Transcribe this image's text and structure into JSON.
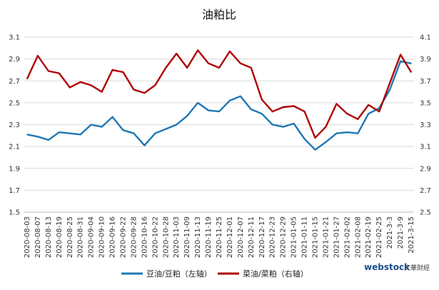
{
  "chart_data": {
    "type": "line",
    "title": "油粕比",
    "left_axis": {
      "ylim": [
        1.5,
        3.1
      ],
      "ticks": [
        "1.5",
        "1.7",
        "1.9",
        "2.1",
        "2.3",
        "2.5",
        "2.7",
        "2.9",
        "3.1"
      ]
    },
    "right_axis": {
      "ylim": [
        2.5,
        4.1
      ],
      "ticks": [
        "2.5",
        "2.7",
        "2.9",
        "3.1",
        "3.3",
        "3.5",
        "3.7",
        "3.9",
        "4.1"
      ]
    },
    "grid": true,
    "legend_position": "bottom",
    "categories": [
      "2020-08-03",
      "2020-08-07",
      "2020-08-13",
      "2020-08-19",
      "2020-08-25",
      "2020-08-31",
      "2020-09-04",
      "2020-09-10",
      "2020-09-16",
      "2020-09-22",
      "2020-09-28",
      "2020-10-16",
      "2020-10-22",
      "2020-10-28",
      "2020-11-03",
      "2020-11-09",
      "2020-11-13",
      "2020-11-19",
      "2020-11-25",
      "2020-12-01",
      "2020-12-07",
      "2020-12-11",
      "2020-12-17",
      "2020-12-23",
      "2020-12-29",
      "2021-01-05",
      "2021-01-11",
      "2021-01-15",
      "2021-01-21",
      "2021-01-27",
      "2021-02-02",
      "2021-02-08",
      "2021-02-19",
      "2021-02-25",
      "2021-3-3",
      "2021-3-9",
      "2021-3-15"
    ],
    "series": [
      {
        "name": "豆油/豆粕（左轴）",
        "axis": "left",
        "color": "#1f77b4",
        "values": [
          2.21,
          2.19,
          2.16,
          2.23,
          2.22,
          2.21,
          2.3,
          2.28,
          2.37,
          2.25,
          2.22,
          2.11,
          2.22,
          2.26,
          2.3,
          2.38,
          2.5,
          2.43,
          2.42,
          2.52,
          2.56,
          2.44,
          2.4,
          2.3,
          2.28,
          2.31,
          2.17,
          2.07,
          2.14,
          2.22,
          2.23,
          2.22,
          2.4,
          2.45,
          2.62,
          2.88,
          2.86
        ]
      },
      {
        "name": "菜油/菜粕（右轴）",
        "axis": "right",
        "color": "#b00000",
        "values": [
          3.72,
          3.93,
          3.79,
          3.77,
          3.64,
          3.69,
          3.66,
          3.6,
          3.8,
          3.78,
          3.62,
          3.59,
          3.66,
          3.82,
          3.95,
          3.82,
          3.98,
          3.86,
          3.82,
          3.97,
          3.86,
          3.82,
          3.53,
          3.42,
          3.46,
          3.47,
          3.42,
          3.18,
          3.28,
          3.49,
          3.4,
          3.35,
          3.48,
          3.42,
          3.68,
          3.94,
          3.78
        ]
      }
    ]
  },
  "watermark": {
    "brand": "webstock",
    "sub": "文華財經"
  }
}
